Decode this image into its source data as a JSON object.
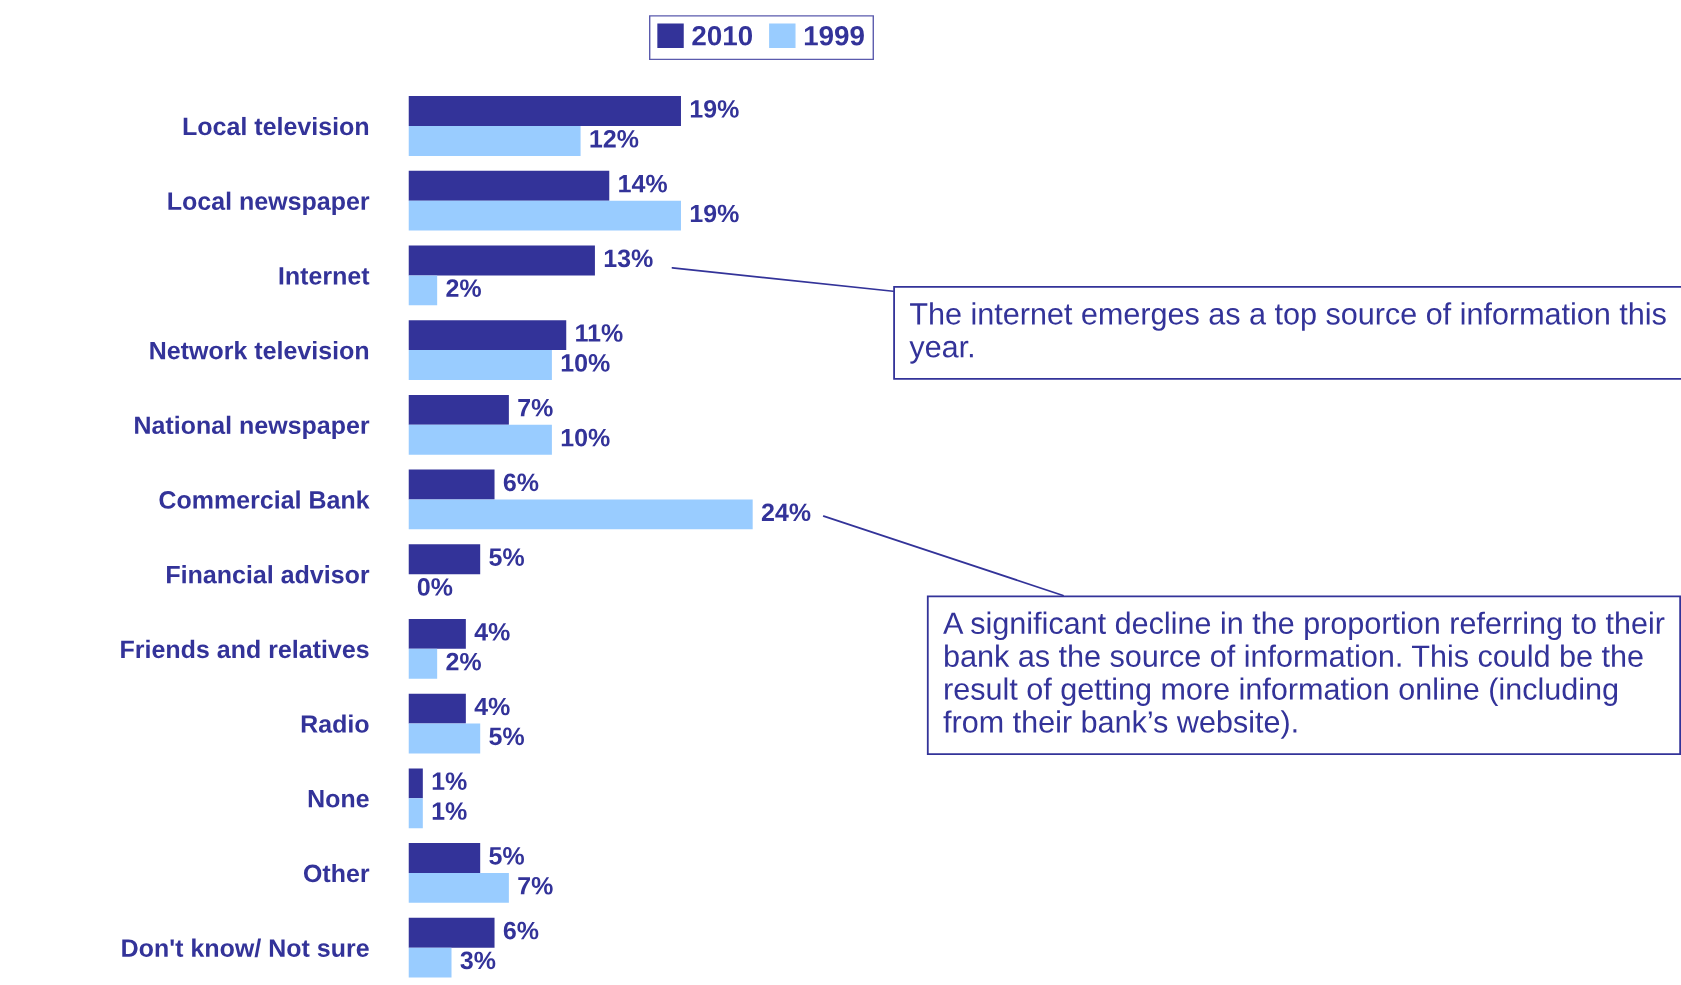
{
  "chart_data": {
    "type": "bar",
    "orientation": "horizontal",
    "categories": [
      "Local television",
      "Local newspaper",
      "Internet",
      "Network television",
      "National newspaper",
      "Commercial Bank",
      "Financial advisor",
      "Friends and relatives",
      "Radio",
      "None",
      "Other",
      "Don't know/ Not sure"
    ],
    "series": [
      {
        "name": "2010",
        "color": "#333399",
        "values": [
          19,
          14,
          13,
          11,
          7,
          6,
          5,
          4,
          4,
          1,
          5,
          6
        ],
        "value_labels": [
          "19%",
          "14%",
          "13%",
          "11%",
          "7%",
          "6%",
          "5%",
          "4%",
          "4%",
          "1%",
          "5%",
          "6%"
        ]
      },
      {
        "name": "1999",
        "color": "#99ccff",
        "values": [
          12,
          19,
          2,
          10,
          10,
          24,
          0,
          2,
          5,
          1,
          7,
          3
        ],
        "value_labels": [
          "12%",
          "19%",
          "2%",
          "10%",
          "10%",
          "24%",
          "0%",
          "2%",
          "5%",
          "1%",
          "7%",
          "3%"
        ]
      }
    ],
    "tick_labels": "y",
    "grid": false,
    "legend": "top",
    "annotations": [
      "The internet emerges as a top source of information this year.",
      "A significant decline in the proportion referring to their bank as the source of information. This could be the result of getting more information online (including from their bank’s website)."
    ]
  }
}
